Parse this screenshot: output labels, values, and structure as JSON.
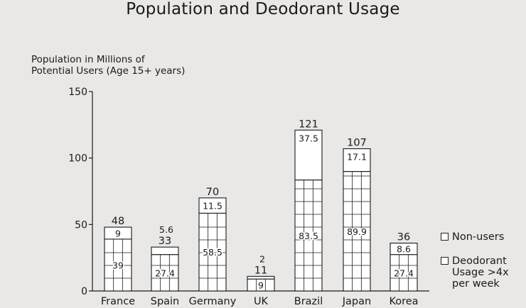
{
  "chart_data": {
    "type": "bar",
    "stacked": true,
    "title": "Population and Deodorant Usage",
    "ylabel": "Population in Millions of Potential Users (Age 15+ years)",
    "ylabel_lines": [
      "Population in Millions of",
      "Potential Users (Age 15+ years)"
    ],
    "xlabel": "",
    "ylim": [
      0,
      150
    ],
    "yticks": [
      0,
      50,
      100,
      150
    ],
    "grid": false,
    "legend_position": "bottom-right",
    "categories": [
      "France",
      "Spain",
      "Germany",
      "UK",
      "Brazil",
      "Japan",
      "Korea"
    ],
    "totals": [
      48,
      33,
      70,
      11,
      121,
      107,
      36
    ],
    "total_labels": [
      "48",
      "33",
      "70",
      "11",
      "121",
      "107",
      "36"
    ],
    "series": [
      {
        "name": "Non-users",
        "values": [
          39,
          27.4,
          58.5,
          9,
          83.5,
          89.9,
          27.4
        ],
        "labels": [
          "39",
          "27.4",
          "58.5",
          "9",
          "83.5",
          "89.9",
          "27.4"
        ]
      },
      {
        "name": "Deodorant Usage >4x per week",
        "values": [
          9,
          5.6,
          11.5,
          2,
          37.5,
          17.1,
          8.6
        ],
        "labels": [
          "9",
          "5.6",
          "11.5",
          "2",
          "37.5",
          "17.1",
          "8.6"
        ]
      }
    ]
  },
  "legend": {
    "nonusers": "Non-users",
    "usage_lines": [
      "Deodorant",
      "Usage >4x",
      "per week"
    ]
  },
  "colors": {
    "bar_fill": "#ffffff",
    "stroke": "#1a1a1a",
    "background": "#e9e8e6"
  }
}
